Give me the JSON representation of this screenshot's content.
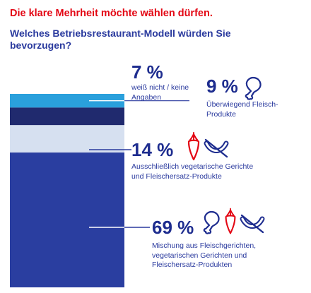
{
  "header": {
    "headline": "Die klare Mehrheit möchte wählen dürfen.",
    "question": "Welches Betriebsrestaurant-Modell würden Sie bevorzugen?"
  },
  "colors": {
    "headline": "#e30613",
    "text": "#1e2d8f",
    "connector": "#2a3a9e",
    "segment_unknown": "#2aa0dc",
    "segment_meat": "#202a6e",
    "segment_veg": "#d6e0f0",
    "segment_mix": "#2a3ea0"
  },
  "chart_data": {
    "type": "bar",
    "stacked": true,
    "unit": "%",
    "categories": [
      "weiß nicht / keine Angaben",
      "Überwiegend Fleisch-Produkte",
      "Ausschließlich vegetarische Gerichte und Fleischersatz-Produkte",
      "Mischung aus Fleischgerichten, vegetarischen Gerichten und Fleischersatz-Produkten"
    ],
    "values": [
      7,
      9,
      14,
      69
    ],
    "labels": [
      "7 %",
      "9 %",
      "14 %",
      "69 %"
    ],
    "icons": [
      [],
      [
        "chicken-leg-icon"
      ],
      [
        "carrot-icon",
        "crossed-sausage-icon"
      ],
      [
        "chicken-leg-icon",
        "carrot-icon",
        "crossed-sausage-icon"
      ]
    ]
  }
}
